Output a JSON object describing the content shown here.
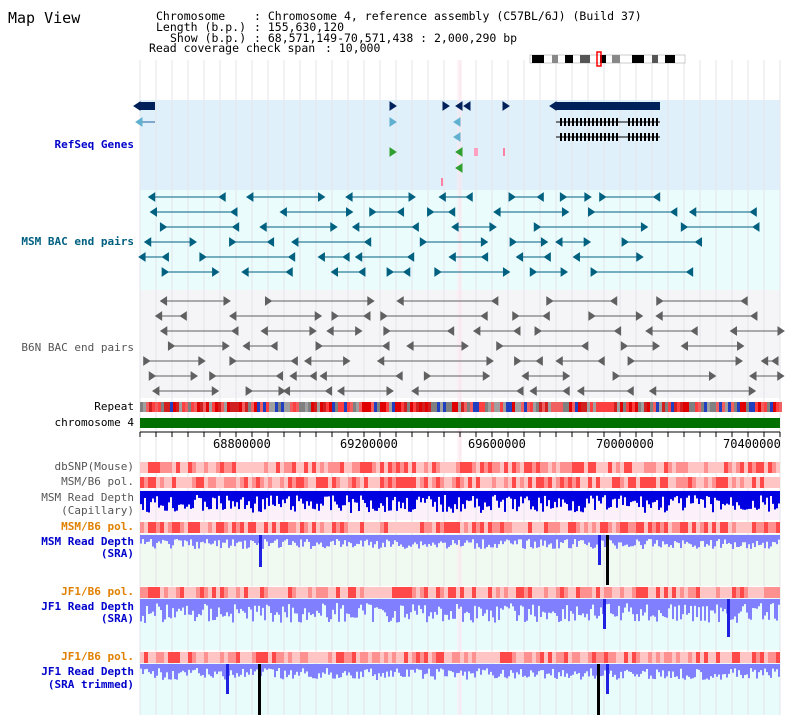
{
  "window": {
    "title": "Map View"
  },
  "info": {
    "chromosome_key": "Chromosome",
    "chromosome_value": ": Chromosome 4, reference assembly (C57BL/6J) (Build 37)",
    "length_key": "Length (b.p.)",
    "length_value": ": 155,630,120",
    "show_key": "Show (b.p.)",
    "show_value": ": 68,571,149-70,571,438 : 2,000,290 bp",
    "coverage_key": "Read coverage check span",
    "coverage_value": ": 10,000"
  },
  "tracks": {
    "refseq": "RefSeq Genes",
    "msm_bac": "MSM BAC end pairs",
    "b6n_bac": "B6N BAC end pairs",
    "repeat": "Repeat",
    "chromosome": "chromosome 4",
    "dbsnp": "dbSNP(Mouse)",
    "msm_b6_pol_1": "MSM/B6 pol.",
    "msm_read_depth_cap_1": "MSM Read Depth",
    "msm_read_depth_cap_2": "(Capillary)",
    "msm_b6_pol_2": "MSM/B6 pol.",
    "msm_read_depth_sra_1": "MSM Read Depth",
    "msm_read_depth_sra_2": "(SRA)",
    "jf1_b6_pol_1": "JF1/B6 pol.",
    "jf1_read_depth_sra_1": "JF1 Read Depth",
    "jf1_read_depth_sra_2": "(SRA)",
    "jf1_b6_pol_2": "JF1/B6 pol.",
    "jf1_read_depth_trim_1": "JF1 Read Depth",
    "jf1_read_depth_trim_2": "(SRA trimmed)"
  },
  "axis": {
    "ticks": [
      "68800000",
      "69200000",
      "69600000",
      "70000000",
      "70400000"
    ]
  },
  "colors": {
    "refseq_bg": "#dff0fa",
    "msm_bac_bg": "#eafcfc",
    "b6n_bg": "#f5f5f8",
    "gene_dark": "#00205a",
    "msm_bac_line": "#006080",
    "b6n_line": "#606060",
    "chrom_green": "#007000",
    "depth_blue": "#0000e0",
    "depth_light": "#8080ff",
    "pol_red": "#ff6060"
  }
}
